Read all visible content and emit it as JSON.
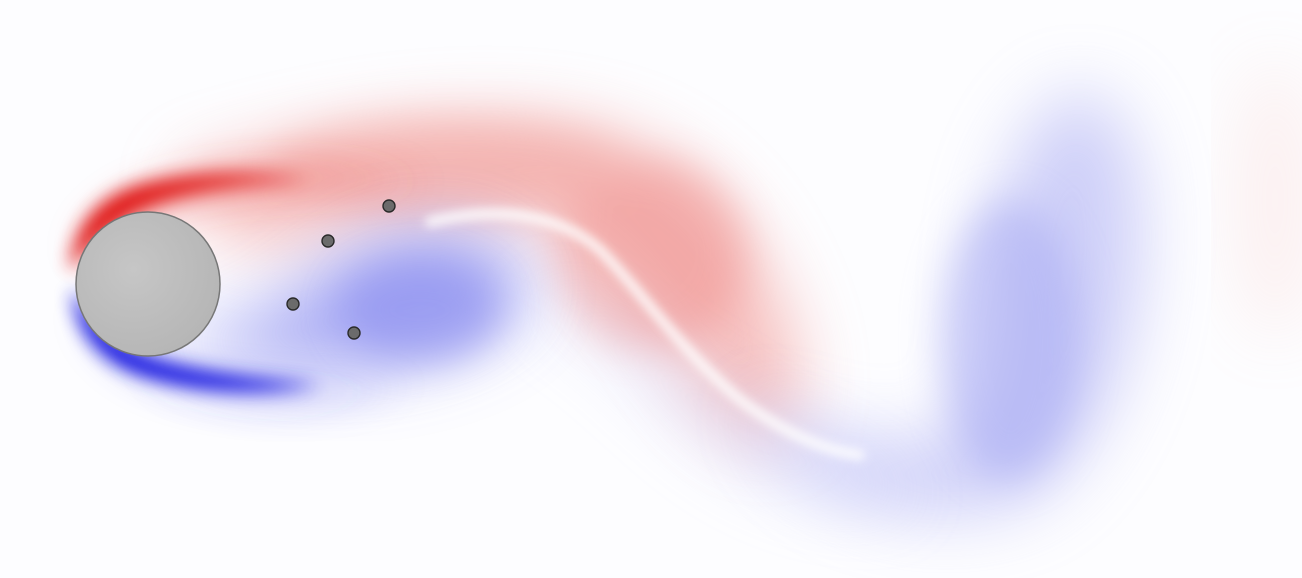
{
  "scene": {
    "background_color": "#fdfdff",
    "positive_vorticity_color": "#e01010",
    "negative_vorticity_color": "#1010e0",
    "cylinder": {
      "fill_color": "#bdbdbd",
      "stroke_color": "#777777"
    },
    "sensor_points": {
      "count": 4,
      "fill_color": "#6b6b6b",
      "stroke_color": "#2a2a2a"
    }
  }
}
